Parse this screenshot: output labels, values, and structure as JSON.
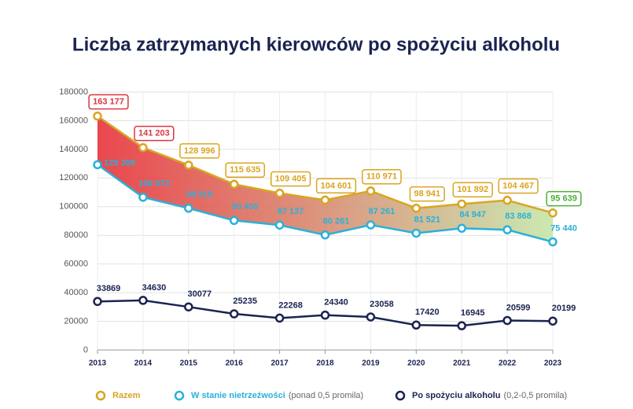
{
  "chart_data": {
    "type": "line",
    "title": "Liczba zatrzymanych kierowców po spożyciu alkoholu",
    "categories": [
      "2013",
      "2014",
      "2015",
      "2016",
      "2017",
      "2018",
      "2019",
      "2020",
      "2021",
      "2022",
      "2023"
    ],
    "ylim": [
      0,
      180000
    ],
    "yticks": [
      0,
      20000,
      40000,
      60000,
      80000,
      100000,
      120000,
      140000,
      160000,
      180000
    ],
    "grid": true,
    "fill_between": {
      "from_color": "#e8333b",
      "to_color": "#c6e6a8"
    },
    "series": [
      {
        "name": "Razem",
        "color": "#d9a521",
        "values": [
          163177,
          141203,
          128996,
          115635,
          109405,
          104601,
          110971,
          98941,
          101892,
          104467,
          95639
        ],
        "value_labels": [
          "163 177",
          "141 203",
          "128 996",
          "115 635",
          "109 405",
          "104 601",
          "110 971",
          "98 941",
          "101 892",
          "104 467",
          "95 639"
        ],
        "label_colors": [
          "#d9363e",
          "#d9363e",
          "#d9a521",
          "#d9a521",
          "#d9a521",
          "#d9a521",
          "#d9a521",
          "#d9a521",
          "#d9a521",
          "#d9a521",
          "#4fae3a"
        ]
      },
      {
        "name": "W stanie nietrzeźwości",
        "legend_note": "(ponad 0,5 promila)",
        "color": "#2bb0d9",
        "values": [
          129308,
          106573,
          98919,
          90400,
          87137,
          80261,
          87261,
          81521,
          84947,
          83868,
          75440
        ],
        "value_labels": [
          "129 308",
          "106 573",
          "98 919",
          "90 400",
          "87 137",
          "80 261",
          "87 261",
          "81 521",
          "84 947",
          "83 868",
          "75 440"
        ]
      },
      {
        "name": "Po spożyciu alkoholu",
        "legend_note": "(0,2-0,5 promila)",
        "color": "#1a2350",
        "values": [
          33869,
          34630,
          30077,
          25235,
          22268,
          24340,
          23058,
          17420,
          16945,
          20599,
          20199
        ]
      }
    ]
  }
}
